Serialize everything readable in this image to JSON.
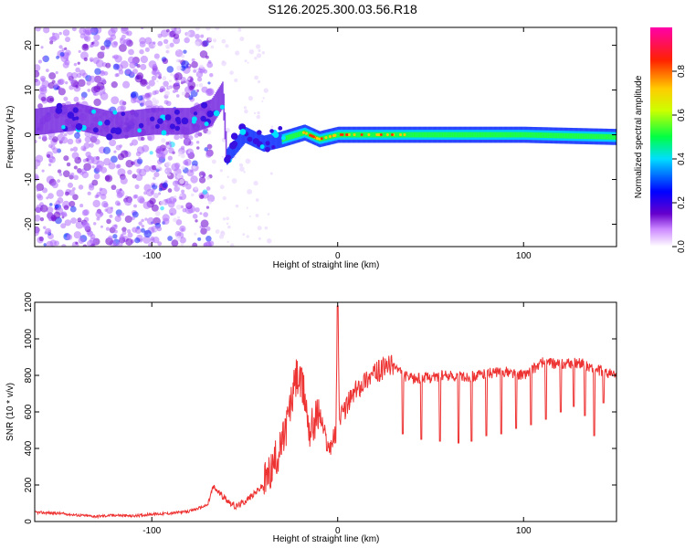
{
  "title": "S126.2025.300.03.56.R18",
  "chart_data": [
    {
      "type": "heatmap",
      "xlabel": "Height of straight line (km)",
      "ylabel": "Frequency (Hz)",
      "xlim": [
        -163,
        150
      ],
      "ylim": [
        -25,
        24
      ],
      "x_ticks": [
        -100,
        0,
        100
      ],
      "y_ticks": [
        20,
        10,
        0,
        -10,
        -20
      ],
      "ridge": [
        {
          "x": -160,
          "y": 3
        },
        {
          "x": -140,
          "y": 4
        },
        {
          "x": -120,
          "y": 2
        },
        {
          "x": -100,
          "y": 3
        },
        {
          "x": -80,
          "y": 3
        },
        {
          "x": -68,
          "y": 5
        },
        {
          "x": -62,
          "y": 9
        },
        {
          "x": -60,
          "y": -5
        },
        {
          "x": -50,
          "y": 0
        },
        {
          "x": -40,
          "y": -2
        },
        {
          "x": -30,
          "y": -1
        },
        {
          "x": -18,
          "y": 0.5
        },
        {
          "x": -10,
          "y": -1
        },
        {
          "x": 0,
          "y": 0
        },
        {
          "x": 50,
          "y": 0
        },
        {
          "x": 100,
          "y": 0
        },
        {
          "x": 150,
          "y": -0.5
        }
      ],
      "colorbar": {
        "label": "Normalized spectral amplitude",
        "ticks": [
          0.0,
          0.2,
          0.4,
          0.6,
          0.8
        ],
        "range": [
          0,
          1
        ]
      }
    },
    {
      "type": "line",
      "xlabel": "Height of straight line (km)",
      "ylabel": "SNR (10 * v/v)",
      "xlim": [
        -163,
        150
      ],
      "ylim": [
        0,
        1200
      ],
      "x_ticks": [
        -100,
        0,
        100
      ],
      "y_ticks": [
        0,
        200,
        400,
        600,
        800,
        1000,
        1200
      ],
      "color": "#ee3333",
      "series": [
        {
          "name": "SNR",
          "x": [
            -163,
            -150,
            -140,
            -130,
            -120,
            -110,
            -100,
            -90,
            -80,
            -70,
            -67,
            -62,
            -55,
            -50,
            -45,
            -40,
            -35,
            -30,
            -25,
            -22,
            -18,
            -15,
            -10,
            -5,
            -1,
            0,
            1,
            5,
            10,
            15,
            20,
            25,
            30,
            35,
            40,
            50,
            60,
            70,
            80,
            90,
            100,
            110,
            120,
            130,
            140,
            150
          ],
          "values": [
            50,
            45,
            35,
            28,
            35,
            30,
            40,
            45,
            55,
            90,
            190,
            140,
            80,
            110,
            150,
            200,
            300,
            420,
            650,
            800,
            700,
            500,
            600,
            400,
            480,
            1180,
            550,
            640,
            720,
            780,
            810,
            840,
            860,
            800,
            780,
            790,
            800,
            790,
            810,
            820,
            800,
            870,
            860,
            870,
            830,
            800
          ]
        }
      ],
      "dips": [
        {
          "x": 35,
          "y": 480
        },
        {
          "x": 45,
          "y": 450
        },
        {
          "x": 55,
          "y": 440
        },
        {
          "x": 65,
          "y": 430
        },
        {
          "x": 72,
          "y": 440
        },
        {
          "x": 80,
          "y": 470
        },
        {
          "x": 88,
          "y": 480
        },
        {
          "x": 96,
          "y": 510
        },
        {
          "x": 104,
          "y": 530
        },
        {
          "x": 112,
          "y": 560
        },
        {
          "x": 120,
          "y": 600
        },
        {
          "x": 127,
          "y": 630
        },
        {
          "x": 133,
          "y": 580
        },
        {
          "x": 138,
          "y": 470
        },
        {
          "x": 143,
          "y": 650
        }
      ]
    }
  ]
}
